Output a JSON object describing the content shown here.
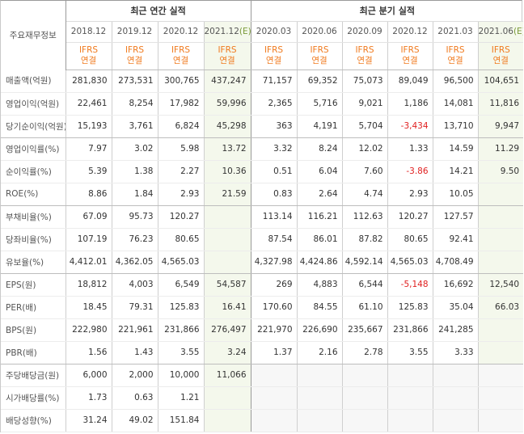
{
  "header": {
    "label_title": "주요재무정보",
    "annual_title": "최근 연간 실적",
    "quarter_title": "최근 분기 실적",
    "est_mark": "(E)",
    "annual_periods": [
      "2018.12",
      "2019.12",
      "2020.12",
      "2021.12"
    ],
    "quarter_periods": [
      "2020.03",
      "2020.06",
      "2020.09",
      "2020.12",
      "2021.03",
      "2021.06"
    ],
    "ifrs_top": "IFRS",
    "ifrs_bottom": "연결"
  },
  "rows": [
    {
      "label": "매출액(억원)",
      "annual": [
        "281,830",
        "273,531",
        "300,765",
        "437,247"
      ],
      "quarter": [
        "71,157",
        "69,352",
        "75,073",
        "89,049",
        "96,500",
        "104,651"
      ]
    },
    {
      "label": "영업이익(억원)",
      "annual": [
        "22,461",
        "8,254",
        "17,982",
        "59,996"
      ],
      "quarter": [
        "2,365",
        "5,716",
        "9,021",
        "1,186",
        "14,081",
        "11,816"
      ]
    },
    {
      "label": "당기순이익(억원)",
      "annual": [
        "15,193",
        "3,761",
        "6,824",
        "45,298"
      ],
      "quarter": [
        "363",
        "4,191",
        "5,704",
        "-3,434",
        "13,710",
        "9,947"
      ]
    },
    {
      "label": "영업이익률(%)",
      "annual": [
        "7.97",
        "3.02",
        "5.98",
        "13.72"
      ],
      "quarter": [
        "3.32",
        "8.24",
        "12.02",
        "1.33",
        "14.59",
        "11.29"
      ]
    },
    {
      "label": "순이익률(%)",
      "annual": [
        "5.39",
        "1.38",
        "2.27",
        "10.36"
      ],
      "quarter": [
        "0.51",
        "6.04",
        "7.60",
        "-3.86",
        "14.21",
        "9.50"
      ]
    },
    {
      "label": "ROE(%)",
      "annual": [
        "8.86",
        "1.84",
        "2.93",
        "21.59"
      ],
      "quarter": [
        "0.83",
        "2.64",
        "4.74",
        "2.93",
        "10.05",
        ""
      ]
    },
    {
      "label": "부채비율(%)",
      "annual": [
        "67.09",
        "95.73",
        "120.27",
        ""
      ],
      "quarter": [
        "113.14",
        "116.21",
        "112.63",
        "120.27",
        "127.57",
        ""
      ]
    },
    {
      "label": "당좌비율(%)",
      "annual": [
        "107.19",
        "76.23",
        "80.65",
        ""
      ],
      "quarter": [
        "87.54",
        "86.01",
        "87.82",
        "80.65",
        "92.41",
        ""
      ]
    },
    {
      "label": "유보율(%)",
      "annual": [
        "4,412.01",
        "4,362.05",
        "4,565.03",
        ""
      ],
      "quarter": [
        "4,327.98",
        "4,424.86",
        "4,592.14",
        "4,565.03",
        "4,708.49",
        ""
      ]
    },
    {
      "label": "EPS(원)",
      "annual": [
        "18,812",
        "4,003",
        "6,549",
        "54,587"
      ],
      "quarter": [
        "269",
        "4,883",
        "6,544",
        "-5,148",
        "16,692",
        "12,540"
      ]
    },
    {
      "label": "PER(배)",
      "annual": [
        "18.45",
        "79.31",
        "125.83",
        "16.41"
      ],
      "quarter": [
        "170.60",
        "84.55",
        "61.10",
        "125.83",
        "35.04",
        "66.03"
      ]
    },
    {
      "label": "BPS(원)",
      "annual": [
        "222,980",
        "221,961",
        "231,866",
        "276,497"
      ],
      "quarter": [
        "221,970",
        "226,690",
        "235,667",
        "231,866",
        "241,285",
        ""
      ]
    },
    {
      "label": "PBR(배)",
      "annual": [
        "1.56",
        "1.43",
        "3.55",
        "3.24"
      ],
      "quarter": [
        "1.37",
        "2.16",
        "2.78",
        "3.55",
        "3.33",
        ""
      ]
    },
    {
      "label": "주당배당금(원)",
      "annual": [
        "6,000",
        "2,000",
        "10,000",
        "11,066"
      ],
      "quarter": [
        "",
        "",
        "",
        "",
        "",
        ""
      ]
    },
    {
      "label": "시가배당률(%)",
      "annual": [
        "1.73",
        "0.63",
        "1.21",
        ""
      ],
      "quarter": [
        "",
        "",
        "",
        "",
        "",
        ""
      ]
    },
    {
      "label": "배당성향(%)",
      "annual": [
        "31.24",
        "49.02",
        "151.84",
        ""
      ],
      "quarter": [
        "",
        "",
        "",
        "",
        "",
        ""
      ]
    }
  ],
  "colors": {
    "negative": "#e02020",
    "ifrs": "#f07a1e",
    "forecast_bg": "#f4f8ec",
    "estimate": "#7a9a3a"
  }
}
